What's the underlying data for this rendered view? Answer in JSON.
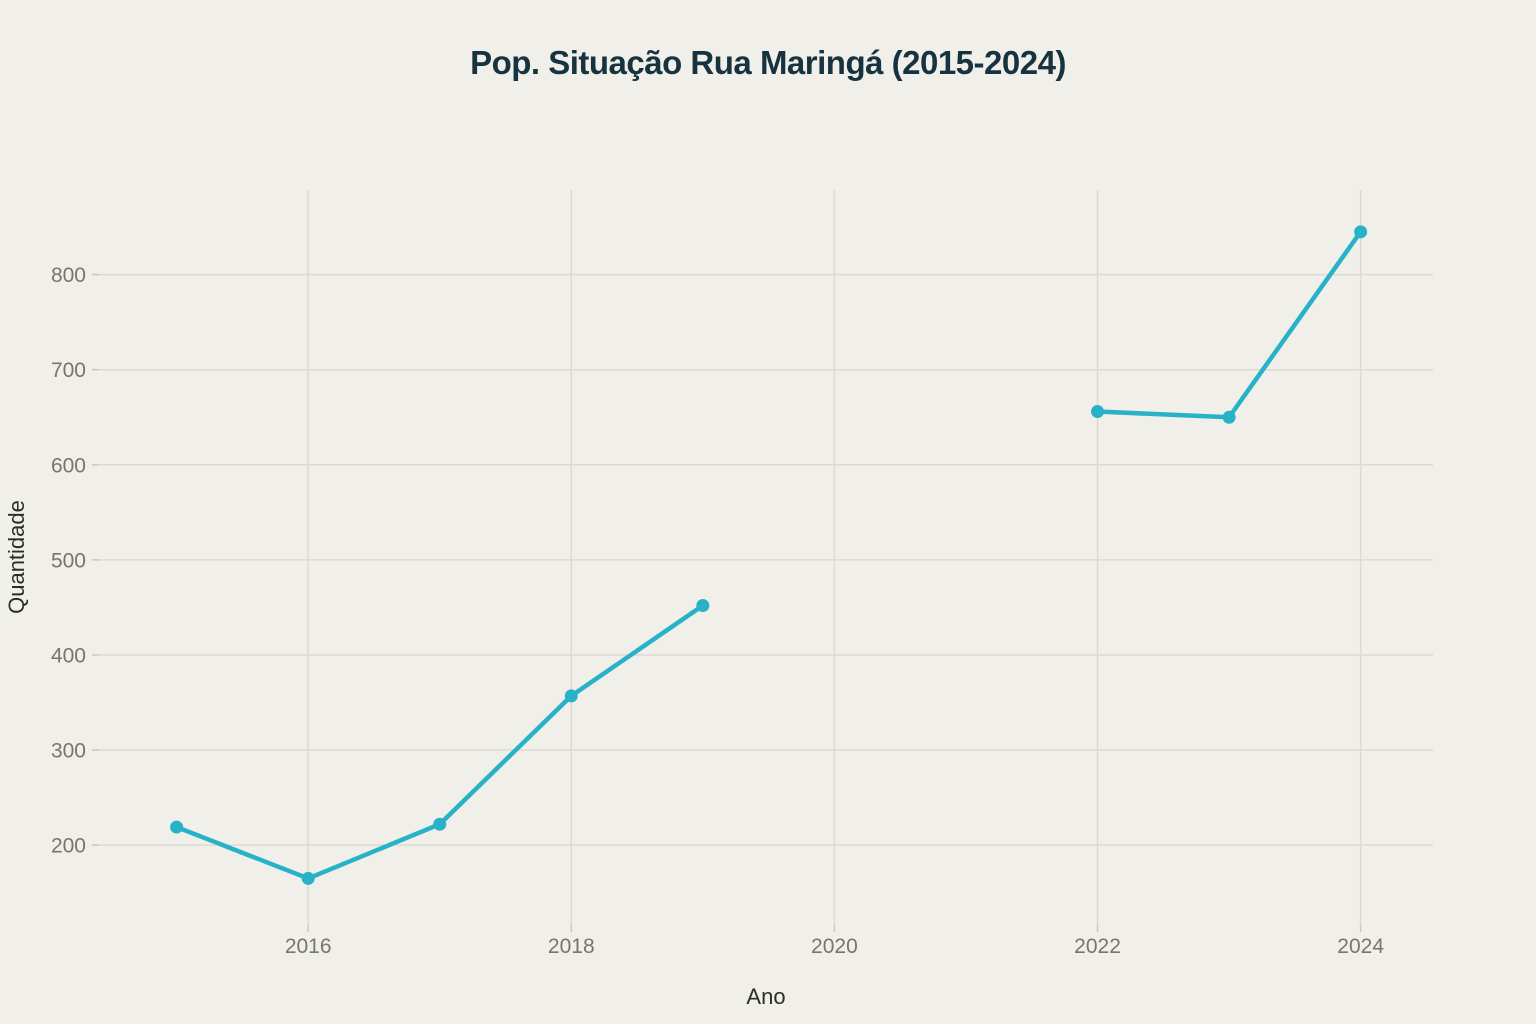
{
  "page": {
    "background": "#f0efe9"
  },
  "chart": {
    "title": "Pop. Situação Rua Maringá (2015-2024)",
    "xlabel": "Ano",
    "ylabel": "Quantidade"
  },
  "chart_data": {
    "type": "line",
    "title": "Pop. Situação Rua Maringá (2015-2024)",
    "xlabel": "Ano",
    "ylabel": "Quantidade",
    "x": [
      2015,
      2016,
      2017,
      2018,
      2019,
      2020,
      2021,
      2022,
      2023,
      2024
    ],
    "series": [
      {
        "name": "Quantidade",
        "values": [
          219,
          165,
          222,
          357,
          452,
          null,
          null,
          656,
          650,
          845
        ]
      }
    ],
    "missing_years": [
      2020,
      2021
    ],
    "x_ticks": [
      2016,
      2018,
      2020,
      2022,
      2024
    ],
    "y_ticks": [
      200,
      300,
      400,
      500,
      600,
      700,
      800
    ],
    "xlim": [
      2014.41,
      2024.55
    ],
    "ylim": [
      116,
      889
    ],
    "grid": true,
    "legend": "none",
    "colors": {
      "line": "#28b2c7",
      "marker": "#28b2c7",
      "grid": "#dcdbd2",
      "tick_mark": "#c9c8c0",
      "tick_label": "#76756f",
      "axis_title": "#2d2d28",
      "title": "#17333f",
      "background": "#f0efe9"
    },
    "style": {
      "line_width": 4.5,
      "marker_radius": 6.5
    }
  }
}
